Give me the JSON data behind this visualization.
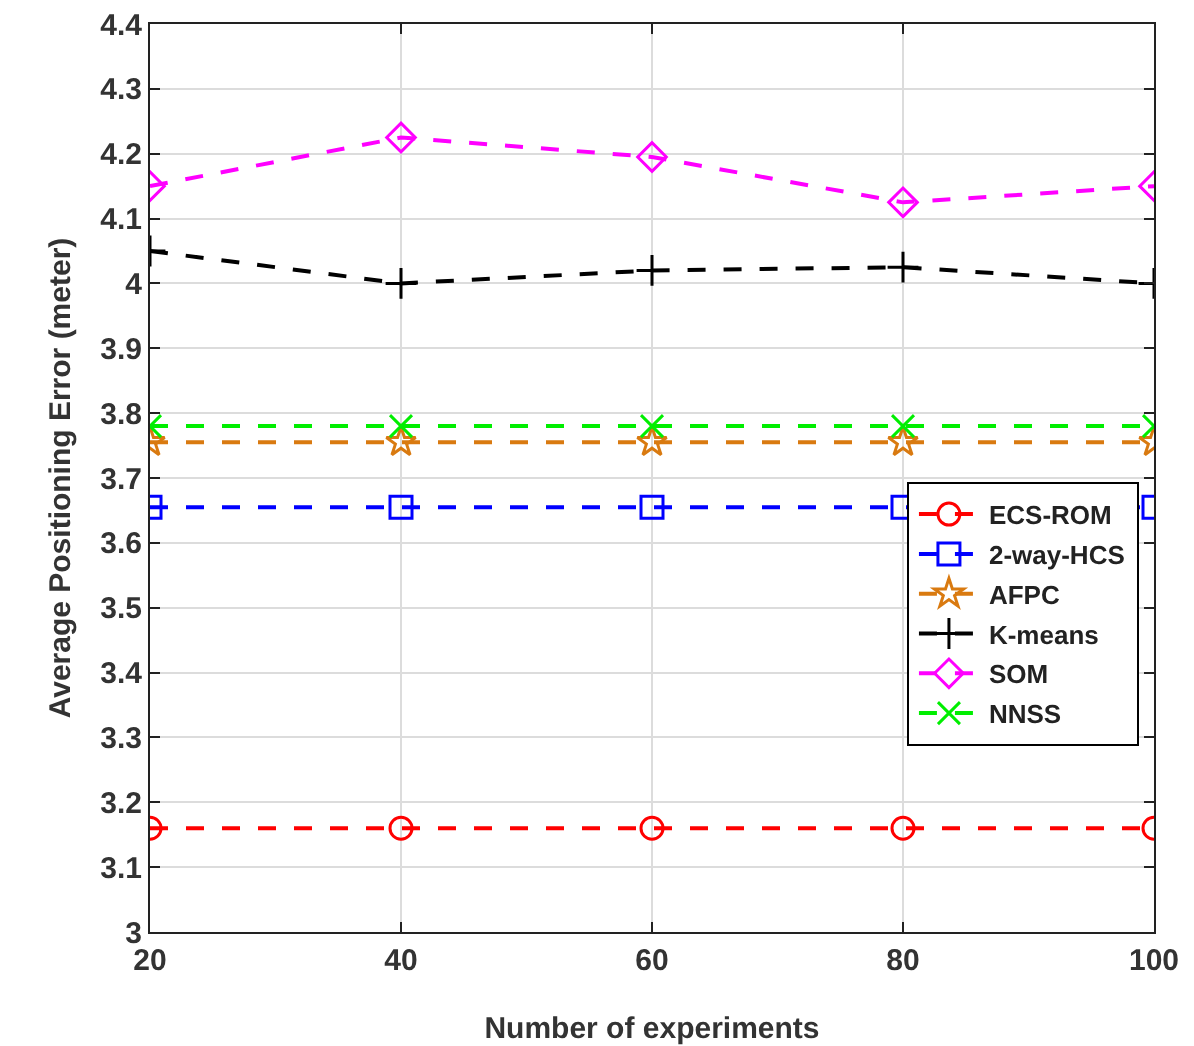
{
  "chart_data": {
    "type": "line",
    "xlabel": "Number of experiments",
    "ylabel": "Average Positioning Error (meter)",
    "x": [
      20,
      40,
      60,
      80,
      100
    ],
    "series": [
      {
        "name": "ECS-ROM",
        "color": "#ff0000",
        "marker": "circle",
        "values": [
          3.16,
          3.16,
          3.16,
          3.16,
          3.16
        ]
      },
      {
        "name": "2-way-HCS",
        "color": "#0000ff",
        "marker": "square",
        "values": [
          3.655,
          3.655,
          3.655,
          3.655,
          3.655
        ]
      },
      {
        "name": "AFPC",
        "color": "#d97a10",
        "marker": "star",
        "values": [
          3.755,
          3.755,
          3.755,
          3.755,
          3.755
        ]
      },
      {
        "name": "K-means",
        "color": "#000000",
        "marker": "cross",
        "values": [
          4.05,
          4.0,
          4.02,
          4.025,
          4.0
        ]
      },
      {
        "name": "SOM",
        "color": "#ff00ff",
        "marker": "diamond",
        "values": [
          4.15,
          4.225,
          4.195,
          4.125,
          4.15
        ]
      },
      {
        "name": "NNSS",
        "color": "#00ee00",
        "marker": "x",
        "values": [
          3.78,
          3.78,
          3.78,
          3.78,
          3.78
        ]
      }
    ],
    "xlim": [
      20,
      100
    ],
    "xticks": [
      20,
      40,
      60,
      80,
      100
    ],
    "ylim": [
      3,
      4.4
    ],
    "yticks": [
      3,
      3.1,
      3.2,
      3.3,
      3.4,
      3.5,
      3.6,
      3.7,
      3.8,
      3.9,
      4,
      4.1,
      4.2,
      4.3,
      4.4
    ],
    "grid": true,
    "legend": "right",
    "line_style": "dashed"
  }
}
